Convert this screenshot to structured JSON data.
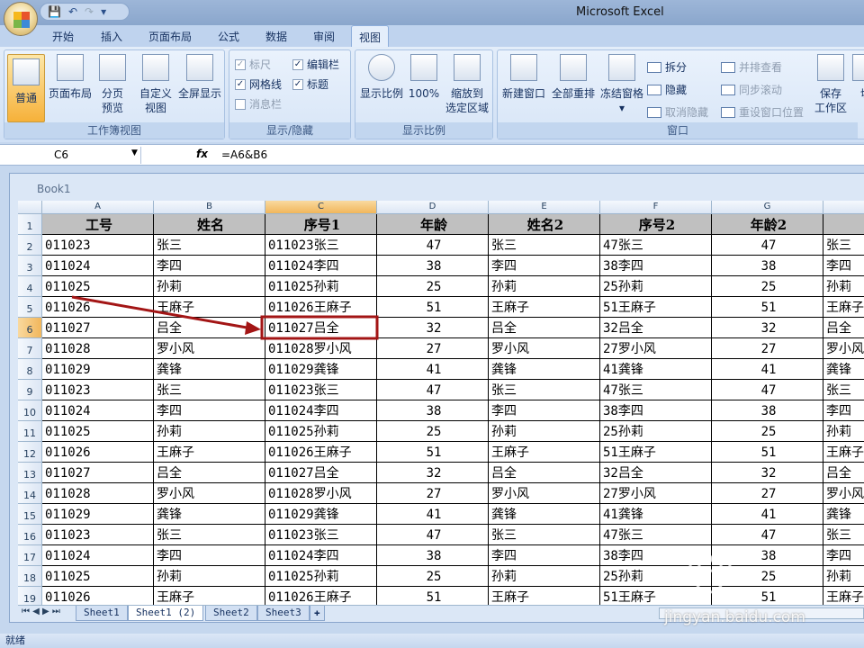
{
  "app_title": "Microsoft Excel",
  "ribbon_tabs": [
    "开始",
    "插入",
    "页面布局",
    "公式",
    "数据",
    "审阅",
    "视图"
  ],
  "active_tab": "视图",
  "groups": {
    "workbook_views": {
      "label": "工作簿视图",
      "items": [
        "普通",
        "页面布局",
        "分页\n预览",
        "自定义\n视图",
        "全屏显示"
      ]
    },
    "show_hide": {
      "label": "显示/隐藏",
      "items": [
        {
          "label": "标尺",
          "checked": true,
          "disabled": true
        },
        {
          "label": "编辑栏",
          "checked": true
        },
        {
          "label": "网格线",
          "checked": true
        },
        {
          "label": "标题",
          "checked": true
        },
        {
          "label": "消息栏",
          "checked": false,
          "disabled": true
        }
      ]
    },
    "zoom": {
      "label": "显示比例",
      "items": [
        "显示比例",
        "100%",
        "缩放到\n选定区域"
      ]
    },
    "window": {
      "label": "窗口",
      "big": [
        "新建窗口",
        "全部重排",
        "冻结窗格",
        "保存\n工作区",
        "切"
      ],
      "small": [
        "拆分",
        "隐藏",
        "取消隐藏",
        "并排查看",
        "同步滚动",
        "重设窗口位置"
      ]
    }
  },
  "formula_bar": {
    "name_box": "C6",
    "fx": "fx",
    "formula": "=A6&B6"
  },
  "workbook_title": "Book1",
  "columns": [
    "A",
    "B",
    "C",
    "D",
    "E",
    "F",
    "G",
    ""
  ],
  "selected_cell": {
    "col": "C",
    "row": 6
  },
  "header_row": [
    "工号",
    "姓名",
    "序号1",
    "年龄",
    "姓名2",
    "序号2",
    "年龄2",
    "姓"
  ],
  "rows": [
    [
      "011023",
      "张三",
      "011023张三",
      "47",
      "张三",
      "47张三",
      "47",
      "张三"
    ],
    [
      "011024",
      "李四",
      "011024李四",
      "38",
      "李四",
      "38李四",
      "38",
      "李四"
    ],
    [
      "011025",
      "孙莉",
      "011025孙莉",
      "25",
      "孙莉",
      "25孙莉",
      "25",
      "孙莉"
    ],
    [
      "011026",
      "王麻子",
      "011026王麻子",
      "51",
      "王麻子",
      "51王麻子",
      "51",
      "王麻子"
    ],
    [
      "011027",
      "吕全",
      "011027吕全",
      "32",
      "吕全",
      "32吕全",
      "32",
      "吕全"
    ],
    [
      "011028",
      "罗小风",
      "011028罗小风",
      "27",
      "罗小风",
      "27罗小风",
      "27",
      "罗小风"
    ],
    [
      "011029",
      "龚锋",
      "011029龚锋",
      "41",
      "龚锋",
      "41龚锋",
      "41",
      "龚锋"
    ],
    [
      "011023",
      "张三",
      "011023张三",
      "47",
      "张三",
      "47张三",
      "47",
      "张三"
    ],
    [
      "011024",
      "李四",
      "011024李四",
      "38",
      "李四",
      "38李四",
      "38",
      "李四"
    ],
    [
      "011025",
      "孙莉",
      "011025孙莉",
      "25",
      "孙莉",
      "25孙莉",
      "25",
      "孙莉"
    ],
    [
      "011026",
      "王麻子",
      "011026王麻子",
      "51",
      "王麻子",
      "51王麻子",
      "51",
      "王麻子"
    ],
    [
      "011027",
      "吕全",
      "011027吕全",
      "32",
      "吕全",
      "32吕全",
      "32",
      "吕全"
    ],
    [
      "011028",
      "罗小风",
      "011028罗小风",
      "27",
      "罗小风",
      "27罗小风",
      "27",
      "罗小风"
    ],
    [
      "011029",
      "龚锋",
      "011029龚锋",
      "41",
      "龚锋",
      "41龚锋",
      "41",
      "龚锋"
    ],
    [
      "011023",
      "张三",
      "011023张三",
      "47",
      "张三",
      "47张三",
      "47",
      "张三"
    ],
    [
      "011024",
      "李四",
      "011024李四",
      "38",
      "李四",
      "38李四",
      "38",
      "李四"
    ],
    [
      "011025",
      "孙莉",
      "011025孙莉",
      "25",
      "孙莉",
      "25孙莉",
      "25",
      "孙莉"
    ],
    [
      "011026",
      "王麻子",
      "011026王麻子",
      "51",
      "王麻子",
      "51王麻子",
      "51",
      "王麻子"
    ]
  ],
  "sheet_tabs": [
    "Sheet1",
    "Sheet1 (2)",
    "Sheet2",
    "Sheet3"
  ],
  "active_sheet": "Sheet1 (2)",
  "status": "就绪",
  "watermark": {
    "logo": "Bai du 经验",
    "url": "jingyan.baidu.com"
  },
  "annotation_color": "#a31515"
}
